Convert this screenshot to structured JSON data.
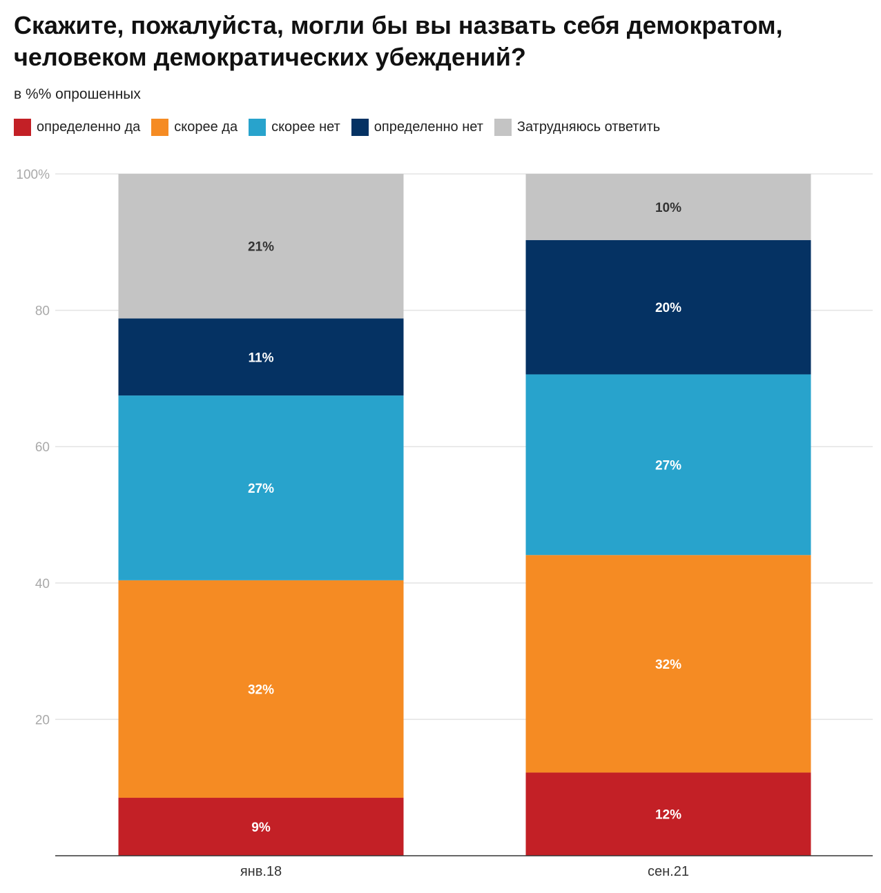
{
  "title": "Скажите, пожалуйста, могли бы вы назвать себя демократом, человеком демократических убеждений?",
  "subtitle": "в %% опрошенных",
  "legend": [
    {
      "label": "определенно да",
      "color": "#c32026"
    },
    {
      "label": "скорее да",
      "color": "#f58b23"
    },
    {
      "label": "скорее нет",
      "color": "#28a3cc"
    },
    {
      "label": "определенно нет",
      "color": "#053263"
    },
    {
      "label": "Затрудняюсь ответить",
      "color": "#c4c4c4"
    }
  ],
  "chart_data": {
    "type": "bar",
    "stacked": true,
    "categories": [
      "янв.18",
      "сен.21"
    ],
    "y_ticks": [
      "20",
      "40",
      "60",
      "80",
      "100%"
    ],
    "y_tick_values": [
      20,
      40,
      60,
      80,
      100
    ],
    "ylim": [
      0,
      100
    ],
    "grid": true,
    "series": [
      {
        "name": "определенно да",
        "color": "#c32026",
        "values": [
          8.5,
          12.2
        ],
        "labels": [
          "9%",
          "12%"
        ],
        "label_color": "#ffffff"
      },
      {
        "name": "скорее да",
        "color": "#f58b23",
        "values": [
          31.9,
          31.9
        ],
        "labels": [
          "32%",
          "32%"
        ],
        "label_color": "#ffffff"
      },
      {
        "name": "скорее нет",
        "color": "#28a3cc",
        "values": [
          27.1,
          26.5
        ],
        "labels": [
          "27%",
          "27%"
        ],
        "label_color": "#ffffff"
      },
      {
        "name": "определенно нет",
        "color": "#053263",
        "values": [
          11.3,
          19.7
        ],
        "labels": [
          "11%",
          "20%"
        ],
        "label_color": "#ffffff"
      },
      {
        "name": "Затрудняюсь ответить",
        "color": "#c4c4c4",
        "values": [
          21.2,
          9.7
        ],
        "labels": [
          "21%",
          "10%"
        ],
        "label_color": "#333333"
      }
    ]
  }
}
